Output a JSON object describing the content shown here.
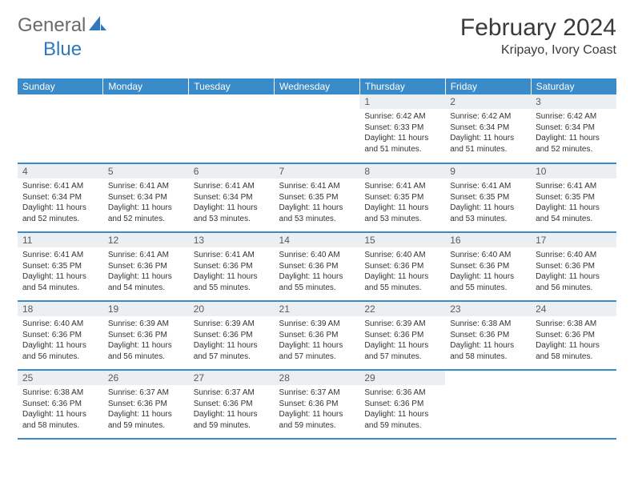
{
  "logo": {
    "word1": "General",
    "word2": "Blue",
    "icon_color": "#2f78bd"
  },
  "title": "February 2024",
  "location": "Kripayo, Ivory Coast",
  "colors": {
    "header_bg": "#3a8bc9",
    "header_text": "#ffffff",
    "daynum_bg": "#eceff1",
    "border": "#3a8bc9"
  },
  "weekdays": [
    "Sunday",
    "Monday",
    "Tuesday",
    "Wednesday",
    "Thursday",
    "Friday",
    "Saturday"
  ],
  "grid": [
    [
      null,
      null,
      null,
      null,
      {
        "n": "1",
        "sr": "6:42 AM",
        "ss": "6:33 PM",
        "dl": "11 hours and 51 minutes."
      },
      {
        "n": "2",
        "sr": "6:42 AM",
        "ss": "6:34 PM",
        "dl": "11 hours and 51 minutes."
      },
      {
        "n": "3",
        "sr": "6:42 AM",
        "ss": "6:34 PM",
        "dl": "11 hours and 52 minutes."
      }
    ],
    [
      {
        "n": "4",
        "sr": "6:41 AM",
        "ss": "6:34 PM",
        "dl": "11 hours and 52 minutes."
      },
      {
        "n": "5",
        "sr": "6:41 AM",
        "ss": "6:34 PM",
        "dl": "11 hours and 52 minutes."
      },
      {
        "n": "6",
        "sr": "6:41 AM",
        "ss": "6:34 PM",
        "dl": "11 hours and 53 minutes."
      },
      {
        "n": "7",
        "sr": "6:41 AM",
        "ss": "6:35 PM",
        "dl": "11 hours and 53 minutes."
      },
      {
        "n": "8",
        "sr": "6:41 AM",
        "ss": "6:35 PM",
        "dl": "11 hours and 53 minutes."
      },
      {
        "n": "9",
        "sr": "6:41 AM",
        "ss": "6:35 PM",
        "dl": "11 hours and 53 minutes."
      },
      {
        "n": "10",
        "sr": "6:41 AM",
        "ss": "6:35 PM",
        "dl": "11 hours and 54 minutes."
      }
    ],
    [
      {
        "n": "11",
        "sr": "6:41 AM",
        "ss": "6:35 PM",
        "dl": "11 hours and 54 minutes."
      },
      {
        "n": "12",
        "sr": "6:41 AM",
        "ss": "6:36 PM",
        "dl": "11 hours and 54 minutes."
      },
      {
        "n": "13",
        "sr": "6:41 AM",
        "ss": "6:36 PM",
        "dl": "11 hours and 55 minutes."
      },
      {
        "n": "14",
        "sr": "6:40 AM",
        "ss": "6:36 PM",
        "dl": "11 hours and 55 minutes."
      },
      {
        "n": "15",
        "sr": "6:40 AM",
        "ss": "6:36 PM",
        "dl": "11 hours and 55 minutes."
      },
      {
        "n": "16",
        "sr": "6:40 AM",
        "ss": "6:36 PM",
        "dl": "11 hours and 55 minutes."
      },
      {
        "n": "17",
        "sr": "6:40 AM",
        "ss": "6:36 PM",
        "dl": "11 hours and 56 minutes."
      }
    ],
    [
      {
        "n": "18",
        "sr": "6:40 AM",
        "ss": "6:36 PM",
        "dl": "11 hours and 56 minutes."
      },
      {
        "n": "19",
        "sr": "6:39 AM",
        "ss": "6:36 PM",
        "dl": "11 hours and 56 minutes."
      },
      {
        "n": "20",
        "sr": "6:39 AM",
        "ss": "6:36 PM",
        "dl": "11 hours and 57 minutes."
      },
      {
        "n": "21",
        "sr": "6:39 AM",
        "ss": "6:36 PM",
        "dl": "11 hours and 57 minutes."
      },
      {
        "n": "22",
        "sr": "6:39 AM",
        "ss": "6:36 PM",
        "dl": "11 hours and 57 minutes."
      },
      {
        "n": "23",
        "sr": "6:38 AM",
        "ss": "6:36 PM",
        "dl": "11 hours and 58 minutes."
      },
      {
        "n": "24",
        "sr": "6:38 AM",
        "ss": "6:36 PM",
        "dl": "11 hours and 58 minutes."
      }
    ],
    [
      {
        "n": "25",
        "sr": "6:38 AM",
        "ss": "6:36 PM",
        "dl": "11 hours and 58 minutes."
      },
      {
        "n": "26",
        "sr": "6:37 AM",
        "ss": "6:36 PM",
        "dl": "11 hours and 59 minutes."
      },
      {
        "n": "27",
        "sr": "6:37 AM",
        "ss": "6:36 PM",
        "dl": "11 hours and 59 minutes."
      },
      {
        "n": "28",
        "sr": "6:37 AM",
        "ss": "6:36 PM",
        "dl": "11 hours and 59 minutes."
      },
      {
        "n": "29",
        "sr": "6:36 AM",
        "ss": "6:36 PM",
        "dl": "11 hours and 59 minutes."
      },
      null,
      null
    ]
  ],
  "labels": {
    "sunrise": "Sunrise:",
    "sunset": "Sunset:",
    "daylight": "Daylight:"
  }
}
